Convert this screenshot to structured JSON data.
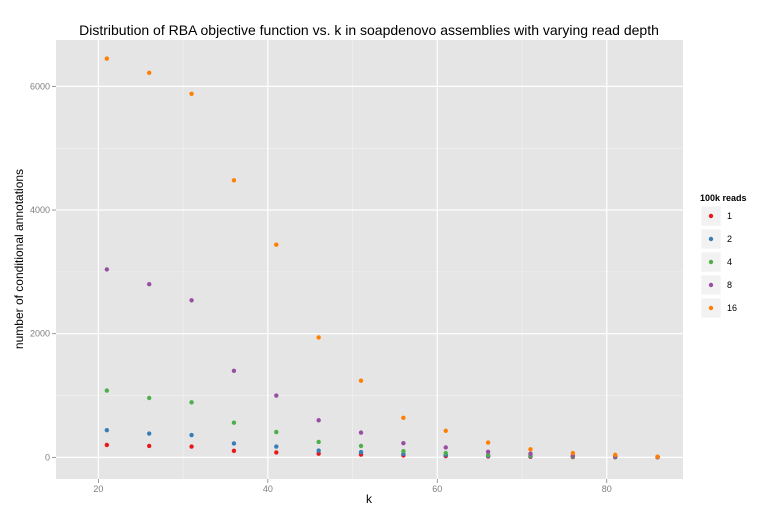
{
  "chart_data": {
    "type": "scatter",
    "title": "Distribution of RBA objective function vs. k in soapdenovo assemblies with varying read depth",
    "xlabel": "k",
    "ylabel": "number of conditional annotations",
    "xlim": [
      15,
      89
    ],
    "ylim": [
      -350,
      6750
    ],
    "x_ticks": [
      20,
      40,
      60,
      80
    ],
    "y_ticks": [
      0,
      2000,
      4000,
      6000
    ],
    "x_tick_labels": [
      "20",
      "40",
      "60",
      "80"
    ],
    "y_tick_labels": [
      "0",
      "2000",
      "4000",
      "6000"
    ],
    "grid": true,
    "legend_title": "100k reads",
    "legend_position": "right",
    "x": [
      21,
      26,
      31,
      36,
      41,
      46,
      51,
      56,
      61,
      66,
      71,
      76,
      81,
      86
    ],
    "series": [
      {
        "name": "1",
        "color": "#e41a1c",
        "values": [
          200,
          185,
          175,
          105,
          80,
          60,
          45,
          30,
          20,
          15,
          10,
          5,
          3,
          2
        ]
      },
      {
        "name": "2",
        "color": "#377eb8",
        "values": [
          440,
          385,
          360,
          225,
          175,
          110,
          85,
          55,
          40,
          25,
          20,
          10,
          5,
          3
        ]
      },
      {
        "name": "4",
        "color": "#4daf4a",
        "values": [
          1080,
          960,
          890,
          560,
          410,
          250,
          185,
          100,
          70,
          40,
          30,
          15,
          10,
          5
        ]
      },
      {
        "name": "8",
        "color": "#984ea3",
        "values": [
          3040,
          2800,
          2540,
          1400,
          1000,
          600,
          400,
          230,
          160,
          90,
          60,
          30,
          15,
          5
        ]
      },
      {
        "name": "16",
        "color": "#ff7f00",
        "values": [
          6450,
          6220,
          5880,
          4480,
          3440,
          1940,
          1240,
          640,
          430,
          240,
          130,
          70,
          40,
          10
        ]
      }
    ]
  }
}
